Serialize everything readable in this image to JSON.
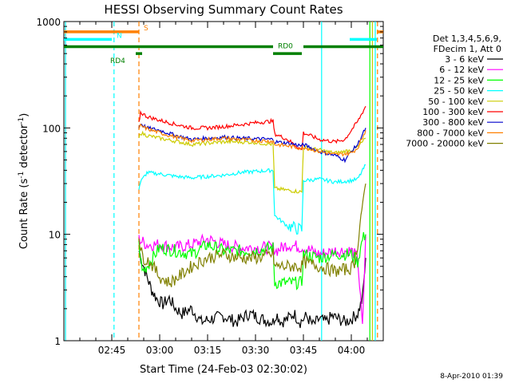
{
  "chart_data": {
    "type": "line",
    "title": "HESSI Observing Summary Count Rates",
    "xlabel": "Start Time (24-Feb-03 02:30:02)",
    "ylabel_main": "Count Rate (s",
    "ylabel_sup1": "-1",
    "ylabel_mid": " detector",
    "ylabel_sup2": "-1",
    "ylabel_end": ")",
    "y_scale": "log",
    "ylim": [
      1,
      1000
    ],
    "xlim_minutes": [
      0,
      100
    ],
    "x_ticks": [
      {
        "label": "02:45",
        "minutes": 15
      },
      {
        "label": "03:00",
        "minutes": 30
      },
      {
        "label": "03:15",
        "minutes": 45
      },
      {
        "label": "03:30",
        "minutes": 60
      },
      {
        "label": "03:45",
        "minutes": 75
      },
      {
        "label": "04:00",
        "minutes": 90
      }
    ],
    "y_ticks": [
      {
        "label": "1",
        "value": 1
      },
      {
        "label": "10",
        "value": 10
      },
      {
        "label": "100",
        "value": 100
      },
      {
        "label": "1000",
        "value": 1000
      }
    ],
    "legend_header": [
      "Det 1,3,4,5,6,9,",
      "FDecim 1, Att 0"
    ],
    "legend_position": "right",
    "series": [
      {
        "name": "3 - 6 keV",
        "color": "#000000",
        "x": [
          23.5,
          24.5,
          26,
          27.5,
          29,
          31,
          33,
          35,
          37,
          40,
          43,
          46,
          50,
          54,
          58,
          62,
          65.5,
          66.5,
          68,
          70,
          72,
          74,
          76,
          78,
          80,
          82,
          84,
          86,
          88,
          90,
          92,
          93.5,
          94.5
        ],
        "y": [
          7,
          5.5,
          4,
          3,
          2.5,
          2.2,
          2.5,
          2,
          1.8,
          2,
          1.5,
          1.6,
          1.7,
          1.5,
          1.8,
          1.6,
          1.5,
          1.8,
          1.5,
          1.6,
          1.8,
          1.5,
          1.7,
          1.4,
          1.6,
          1.5,
          1.7,
          1.6,
          1.5,
          1.6,
          1.8,
          2.5,
          6
        ]
      },
      {
        "name": "6 - 12 keV",
        "color": "#ff00ff",
        "x": [
          23.5,
          26,
          30,
          35,
          40,
          45,
          50,
          55,
          60,
          65.5,
          66.5,
          70,
          75,
          80,
          85,
          90,
          92,
          93.5,
          94.5
        ],
        "y": [
          9,
          8,
          8,
          7.5,
          8,
          9,
          8,
          7.5,
          7.5,
          7.5,
          7,
          8,
          7.5,
          6.5,
          7,
          7,
          6,
          1.3,
          10
        ]
      },
      {
        "name": "12 - 25 keV",
        "color": "#00ff00",
        "x": [
          23.5,
          24.5,
          26,
          30,
          35,
          40,
          45,
          50,
          55,
          60,
          65.5,
          66,
          70,
          74.5,
          75,
          80,
          85,
          90,
          92,
          93.5,
          94.5
        ],
        "y": [
          8,
          4.5,
          5,
          7.5,
          7,
          6.5,
          8,
          7,
          7,
          7,
          7.5,
          3.5,
          3.5,
          3.5,
          6.5,
          6,
          6.5,
          6.5,
          5.5,
          9,
          10
        ]
      },
      {
        "name": "25 - 50 keV",
        "color": "#00ffff",
        "x": [
          23.5,
          24,
          26,
          30,
          35,
          40,
          45,
          50,
          55,
          60,
          65.5,
          66,
          70,
          74.5,
          75,
          80,
          85,
          90,
          92,
          94.5
        ],
        "y": [
          27,
          31,
          38,
          37,
          35,
          34,
          35,
          36,
          38,
          39,
          40,
          15,
          12,
          11,
          32,
          33,
          31,
          32,
          33,
          45
        ]
      },
      {
        "name": "50 - 100 keV",
        "color": "#cccc00",
        "x": [
          23.5,
          24,
          26,
          30,
          35,
          40,
          45,
          50,
          55,
          60,
          65.5,
          66,
          70,
          74.5,
          75,
          80,
          85,
          90,
          92,
          94.5
        ],
        "y": [
          80,
          90,
          85,
          80,
          75,
          70,
          72,
          74,
          74,
          73,
          70,
          27,
          26,
          25,
          66,
          62,
          58,
          62,
          66,
          80
        ]
      },
      {
        "name": "100 - 300 keV",
        "color": "#ff0000",
        "x": [
          23.5,
          24,
          26,
          30,
          35,
          40,
          45,
          50,
          55,
          60,
          65.5,
          66,
          70,
          74.5,
          75,
          80,
          85,
          88,
          90,
          92,
          94.5
        ],
        "y": [
          110,
          140,
          128,
          118,
          108,
          100,
          100,
          103,
          107,
          112,
          116,
          88,
          78,
          62,
          90,
          78,
          74,
          78,
          95,
          115,
          160
        ]
      },
      {
        "name": "300 - 800 keV",
        "color": "#0000cc",
        "x": [
          23.5,
          24,
          26,
          30,
          35,
          40,
          45,
          50,
          55,
          60,
          65.5,
          66,
          70,
          74.5,
          75,
          80,
          85,
          88,
          90,
          92,
          94.5
        ],
        "y": [
          100,
          110,
          100,
          95,
          85,
          78,
          80,
          82,
          80,
          79,
          78,
          74,
          72,
          68,
          70,
          60,
          55,
          50,
          60,
          70,
          100
        ]
      },
      {
        "name": "800 - 7000 keV",
        "color": "#ff8000",
        "x": [
          23.5,
          24,
          26,
          30,
          35,
          40,
          45,
          50,
          55,
          60,
          65.5,
          66,
          70,
          74.5,
          75,
          80,
          85,
          90,
          92,
          94.5
        ],
        "y": [
          95,
          105,
          98,
          90,
          82,
          76,
          78,
          80,
          78,
          76,
          75,
          70,
          68,
          64,
          66,
          60,
          56,
          58,
          65,
          95
        ]
      },
      {
        "name": "7000 - 20000 keV",
        "color": "#808000",
        "x": [
          23.5,
          24,
          25,
          27,
          30,
          33,
          36,
          40,
          45,
          50,
          55,
          60,
          65.5,
          66,
          70,
          74.5,
          75,
          80,
          85,
          90,
          91,
          92,
          93,
          94.5
        ],
        "y": [
          10,
          7,
          6,
          5.5,
          4,
          3.5,
          4,
          5,
          6,
          6.5,
          6,
          6,
          6.5,
          5,
          5,
          5,
          5.5,
          5,
          4.5,
          4.8,
          5.5,
          8,
          15,
          30
        ]
      }
    ],
    "status_bars": [
      {
        "label": "S",
        "color": "#ff8000",
        "label_color": "#ff8000",
        "segments": [
          [
            0,
            23.5
          ],
          [
            98,
            100
          ]
        ],
        "level": 800
      },
      {
        "label": "N",
        "color": "#00ffff",
        "label_color": "#00ffff",
        "segments": [
          [
            0,
            15
          ],
          [
            89.5,
            98
          ]
        ],
        "level": 680
      },
      {
        "label": "RD0",
        "color": "#008000",
        "label_color": "#008000",
        "segments": [
          [
            0,
            65.5
          ],
          [
            75,
            100
          ]
        ],
        "level": 580
      },
      {
        "label": "RD4",
        "color": "#008000",
        "label_color": "#008000",
        "segments": [
          [
            22.5,
            24.5
          ],
          [
            65.5,
            74.5
          ]
        ],
        "level": 500
      }
    ],
    "vlines": [
      {
        "minutes": 0.5,
        "color": "#00ffff",
        "dashed": false
      },
      {
        "minutes": 15.7,
        "color": "#00ffff",
        "dashed": true
      },
      {
        "minutes": 23.5,
        "color": "#ff8000",
        "dashed": true
      },
      {
        "minutes": 80.7,
        "color": "#00ffff",
        "dashed": false
      },
      {
        "minutes": 97.5,
        "color": "#00ffff",
        "dashed": false
      },
      {
        "minutes": 98.2,
        "color": "#ff8000",
        "dashed": true
      },
      {
        "minutes": 95.8,
        "color": "#00ff00",
        "dashed": false
      },
      {
        "minutes": 96.6,
        "color": "#cccc00",
        "dashed": false
      }
    ]
  },
  "footer_timestamp": "8-Apr-2010 01:39"
}
